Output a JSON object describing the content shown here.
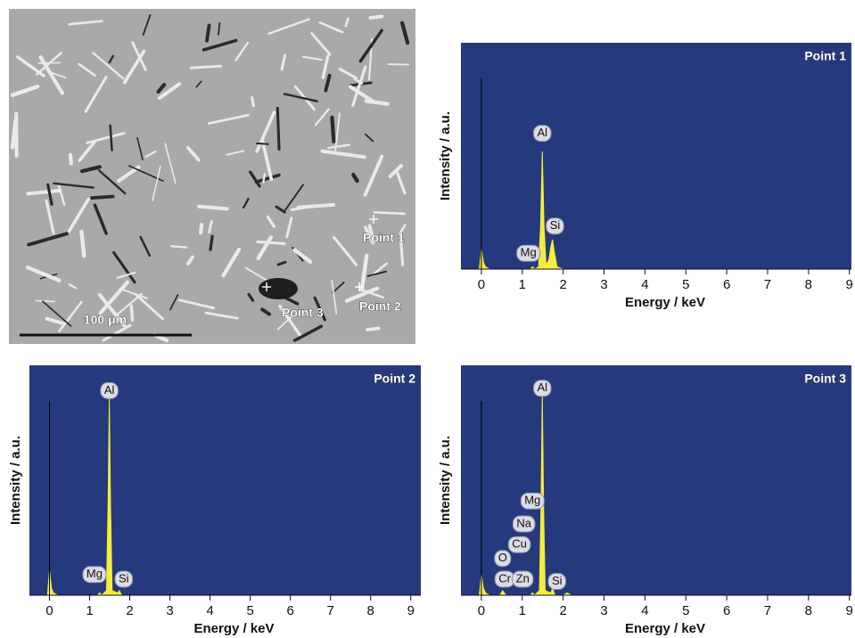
{
  "image": {
    "scale_bar": "100 μm",
    "labels": [
      "Point 1",
      "Point 2",
      "Point 3"
    ]
  },
  "chart_data": [
    {
      "type": "area",
      "title": "Point 1",
      "xlabel": "Energy / keV",
      "ylabel": "Intensity / a.u.",
      "color": "#f2ee3c",
      "background": "#25397c",
      "x": [
        -0.5,
        -0.05,
        0,
        0.05,
        0.1,
        0.2,
        1.2,
        1.25,
        1.3,
        1.4,
        1.45,
        1.49,
        1.53,
        1.58,
        1.65,
        1.7,
        1.74,
        1.78,
        1.85,
        2.0,
        9.05
      ],
      "values": [
        0,
        0,
        9,
        3,
        1,
        0,
        0,
        1,
        0,
        1,
        20,
        52,
        20,
        2,
        4,
        10,
        13,
        8,
        1,
        0,
        0
      ],
      "xlim": [
        -0.5,
        9.05
      ],
      "ylim": [
        0,
        100
      ],
      "xticks": [
        0,
        1,
        2,
        3,
        4,
        5,
        6,
        7,
        8,
        9
      ],
      "annotations": [
        {
          "text": "Al",
          "x": 1.49,
          "y": 60
        },
        {
          "text": "Si",
          "x": 1.8,
          "y": 19
        },
        {
          "text": "Mg",
          "x": 1.15,
          "y": 7
        }
      ]
    },
    {
      "type": "area",
      "title": "Point 2",
      "xlabel": "Energy / keV",
      "ylabel": "Intensity / a.u.",
      "color": "#f2ee3c",
      "background": "#25397c",
      "x": [
        -0.5,
        -0.05,
        0,
        0.05,
        0.1,
        0.2,
        1.2,
        1.25,
        1.3,
        1.42,
        1.46,
        1.49,
        1.52,
        1.56,
        1.7,
        1.74,
        1.8,
        9.25
      ],
      "values": [
        0,
        0,
        11,
        3,
        1,
        0,
        0,
        1,
        0,
        2,
        40,
        86,
        40,
        2,
        1,
        2,
        0,
        0
      ],
      "xlim": [
        -0.5,
        9.25
      ],
      "ylim": [
        0,
        100
      ],
      "xticks": [
        0,
        1,
        2,
        3,
        4,
        5,
        6,
        7,
        8,
        9
      ],
      "annotations": [
        {
          "text": "Al",
          "x": 1.49,
          "y": 89
        },
        {
          "text": "Mg",
          "x": 1.12,
          "y": 9
        },
        {
          "text": "Si",
          "x": 1.85,
          "y": 7
        }
      ]
    },
    {
      "type": "area",
      "title": "Point 3",
      "xlabel": "Energy / keV",
      "ylabel": "Intensity / a.u.",
      "color": "#f2ee3c",
      "background": "#25397c",
      "x": [
        -0.5,
        -0.05,
        0,
        0.05,
        0.1,
        0.2,
        0.45,
        0.52,
        0.6,
        1.2,
        1.25,
        1.3,
        1.42,
        1.46,
        1.49,
        1.52,
        1.56,
        1.7,
        1.74,
        1.8,
        2.0,
        2.1,
        2.2,
        9.05
      ],
      "values": [
        0,
        0,
        9,
        3,
        1,
        0,
        0,
        2,
        0,
        0,
        1,
        0,
        2,
        40,
        88,
        40,
        2,
        1,
        3,
        0,
        0,
        1,
        0,
        0
      ],
      "xlim": [
        -0.5,
        9.05
      ],
      "ylim": [
        0,
        100
      ],
      "xticks": [
        0,
        1,
        2,
        3,
        4,
        5,
        6,
        7,
        8,
        9
      ],
      "annotations": [
        {
          "text": "Al",
          "x": 1.49,
          "y": 90
        },
        {
          "text": "Mg",
          "x": 1.25,
          "y": 41
        },
        {
          "text": "Na",
          "x": 1.04,
          "y": 31
        },
        {
          "text": "Cu",
          "x": 0.93,
          "y": 22
        },
        {
          "text": "O",
          "x": 0.52,
          "y": 16
        },
        {
          "text": "Cr",
          "x": 0.57,
          "y": 7
        },
        {
          "text": "Zn",
          "x": 1.01,
          "y": 7
        },
        {
          "text": "Si",
          "x": 1.85,
          "y": 6
        }
      ]
    }
  ]
}
